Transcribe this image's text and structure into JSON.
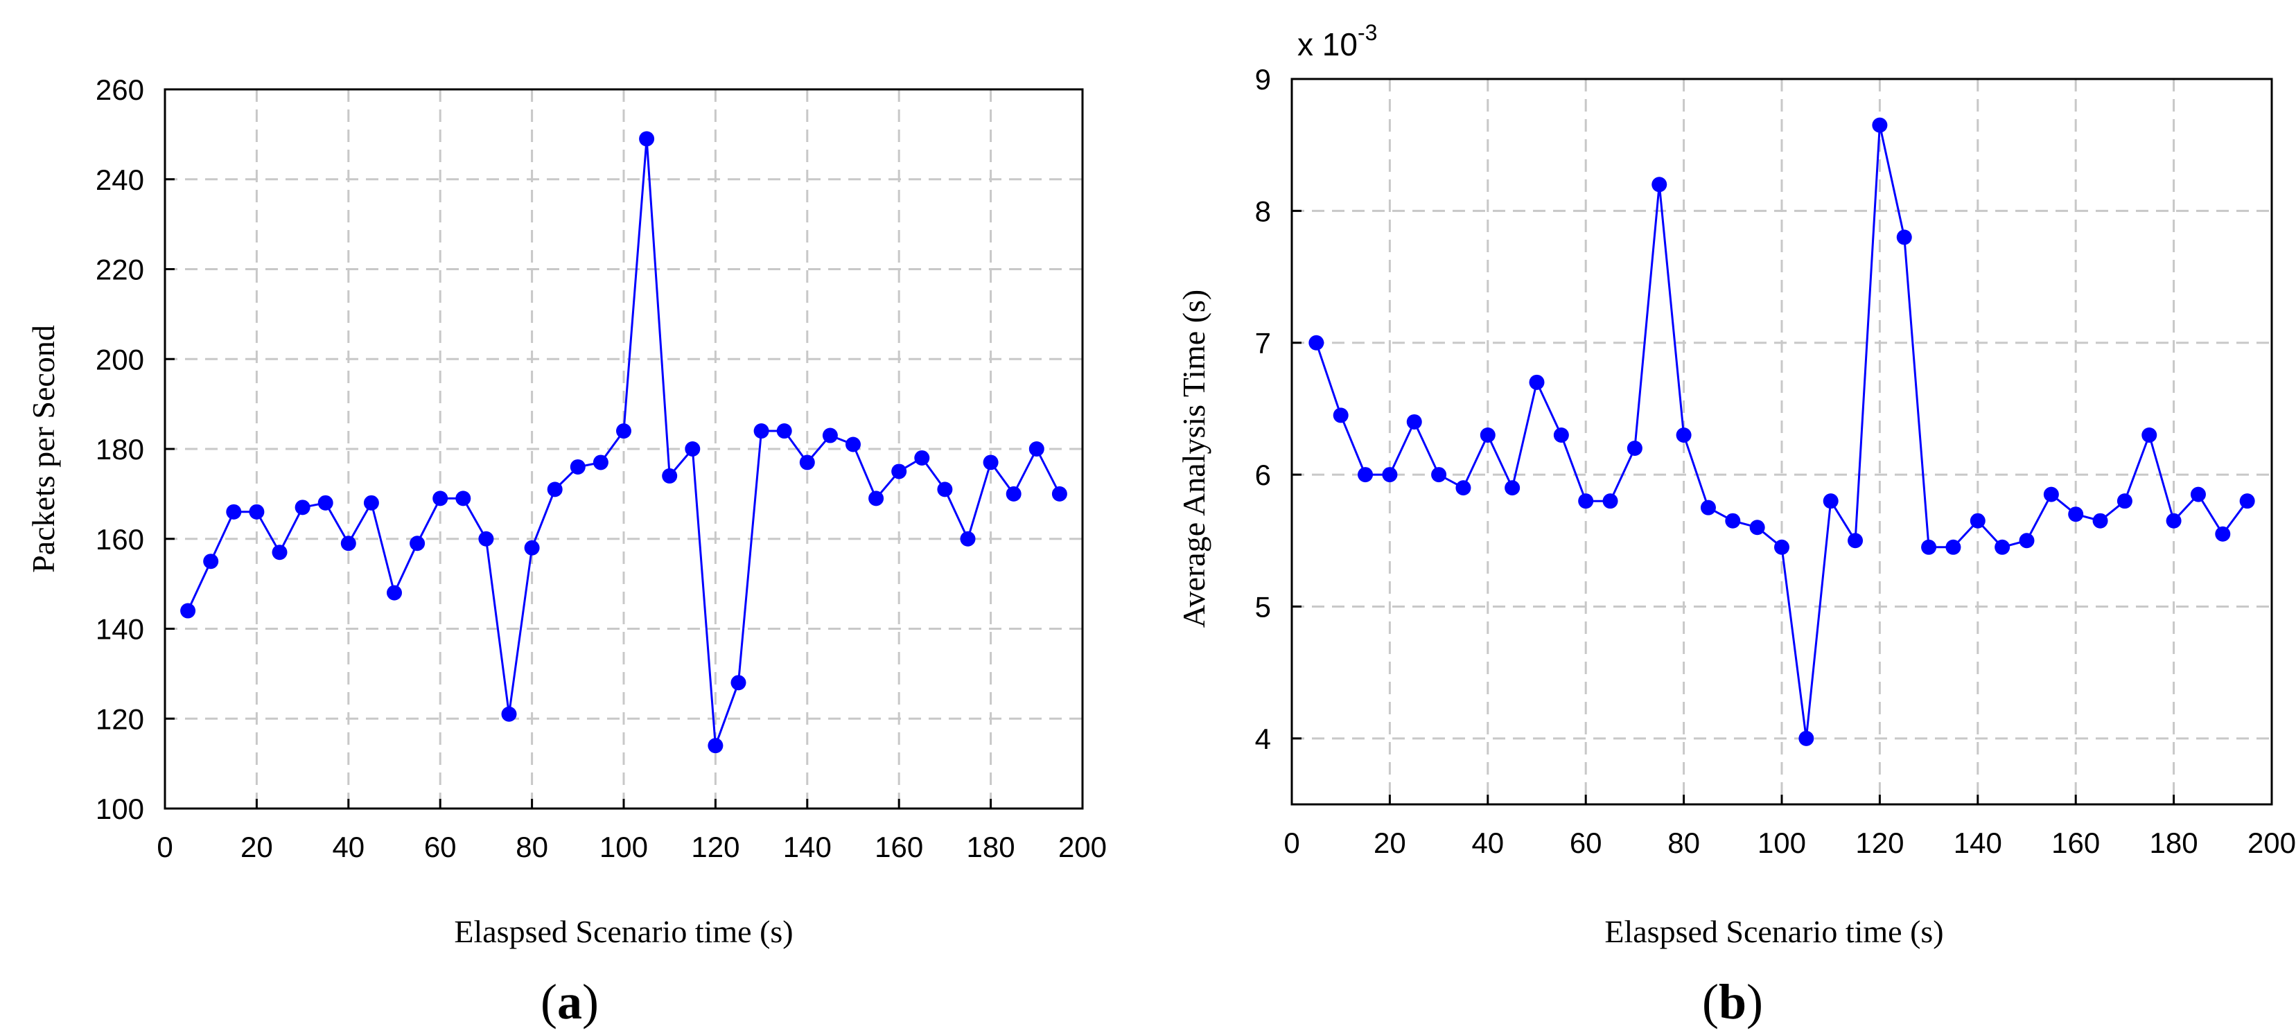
{
  "chart_data": [
    {
      "type": "line",
      "panel_label": "a",
      "title": "",
      "xlabel": "Elaspsed Scenario time (s)",
      "ylabel": "Packets per Second",
      "xlim": [
        0,
        200
      ],
      "ylim": [
        100,
        260
      ],
      "xticks": [
        0,
        20,
        40,
        60,
        80,
        100,
        120,
        140,
        160,
        180,
        200
      ],
      "yticks": [
        100,
        120,
        140,
        160,
        180,
        200,
        220,
        240,
        260
      ],
      "grid": true,
      "legend": "none",
      "series": [
        {
          "name": "Packets per Second",
          "color": "#0000ff",
          "marker": "circle",
          "x": [
            5,
            10,
            15,
            20,
            25,
            30,
            35,
            40,
            45,
            50,
            55,
            60,
            65,
            70,
            75,
            80,
            85,
            90,
            95,
            100,
            105,
            110,
            115,
            120,
            125,
            130,
            135,
            140,
            145,
            150,
            155,
            160,
            165,
            170,
            175,
            180,
            185,
            190,
            195
          ],
          "y": [
            144,
            155,
            166,
            166,
            157,
            167,
            168,
            159,
            168,
            148,
            159,
            169,
            169,
            160,
            121,
            158,
            171,
            176,
            177,
            184,
            249,
            174,
            180,
            114,
            128,
            184,
            184,
            177,
            183,
            181,
            169,
            175,
            178,
            171,
            160,
            177,
            170,
            180,
            170
          ]
        }
      ]
    },
    {
      "type": "line",
      "panel_label": "b",
      "title": "",
      "xlabel": "Elaspsed Scenario time (s)",
      "ylabel": "Average Analysis Time (s)",
      "y_multiplier_base": "x 10",
      "y_multiplier_exponent": "-3",
      "xlim": [
        0,
        200
      ],
      "ylim": [
        3.5,
        9
      ],
      "xticks": [
        0,
        20,
        40,
        60,
        80,
        100,
        120,
        140,
        160,
        180,
        200
      ],
      "yticks": [
        4,
        5,
        6,
        7,
        8,
        9
      ],
      "grid": true,
      "legend": "none",
      "series": [
        {
          "name": "Average Analysis Time",
          "color": "#0000ff",
          "marker": "circle",
          "x": [
            5,
            10,
            15,
            20,
            25,
            30,
            35,
            40,
            45,
            50,
            55,
            60,
            65,
            70,
            75,
            80,
            85,
            90,
            95,
            100,
            105,
            110,
            115,
            120,
            125,
            130,
            135,
            140,
            145,
            150,
            155,
            160,
            165,
            170,
            175,
            180,
            185,
            190,
            195
          ],
          "y": [
            7.0,
            6.45,
            6.0,
            6.0,
            6.4,
            6.0,
            5.9,
            6.3,
            5.9,
            6.7,
            6.3,
            5.8,
            5.8,
            6.2,
            8.2,
            6.3,
            5.75,
            5.65,
            5.6,
            5.45,
            4.0,
            5.8,
            5.5,
            8.65,
            7.8,
            5.45,
            5.45,
            5.65,
            5.45,
            5.5,
            5.85,
            5.7,
            5.65,
            5.8,
            6.3,
            5.65,
            5.85,
            5.55,
            5.8
          ]
        }
      ]
    }
  ]
}
